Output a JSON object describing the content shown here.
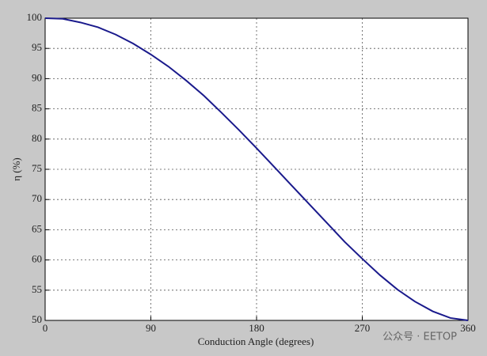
{
  "chart_data": {
    "type": "line",
    "x_label": "Conduction Angle (degrees)",
    "y_label": "η (%)",
    "watermark": "公众号 · EETOP",
    "x": [
      0,
      15,
      30,
      45,
      60,
      75,
      90,
      105,
      120,
      135,
      150,
      165,
      180,
      195,
      210,
      225,
      240,
      255,
      270,
      285,
      300,
      315,
      330,
      345,
      360
    ],
    "series": [
      {
        "name": "η",
        "color": "#1a1a8c",
        "values": [
          100,
          99.9,
          99.3,
          98.5,
          97.3,
          95.8,
          94.0,
          92.0,
          89.7,
          87.2,
          84.4,
          81.5,
          78.5,
          75.4,
          72.3,
          69.2,
          66.1,
          63.0,
          60.2,
          57.5,
          55.1,
          53.1,
          51.5,
          50.4,
          50
        ]
      }
    ],
    "xlim": [
      0,
      360
    ],
    "xticks": [
      0,
      90,
      180,
      270,
      360
    ],
    "ylim": [
      50,
      100
    ],
    "yticks": [
      50,
      55,
      60,
      65,
      70,
      75,
      80,
      85,
      90,
      95,
      100
    ],
    "grid": true
  }
}
